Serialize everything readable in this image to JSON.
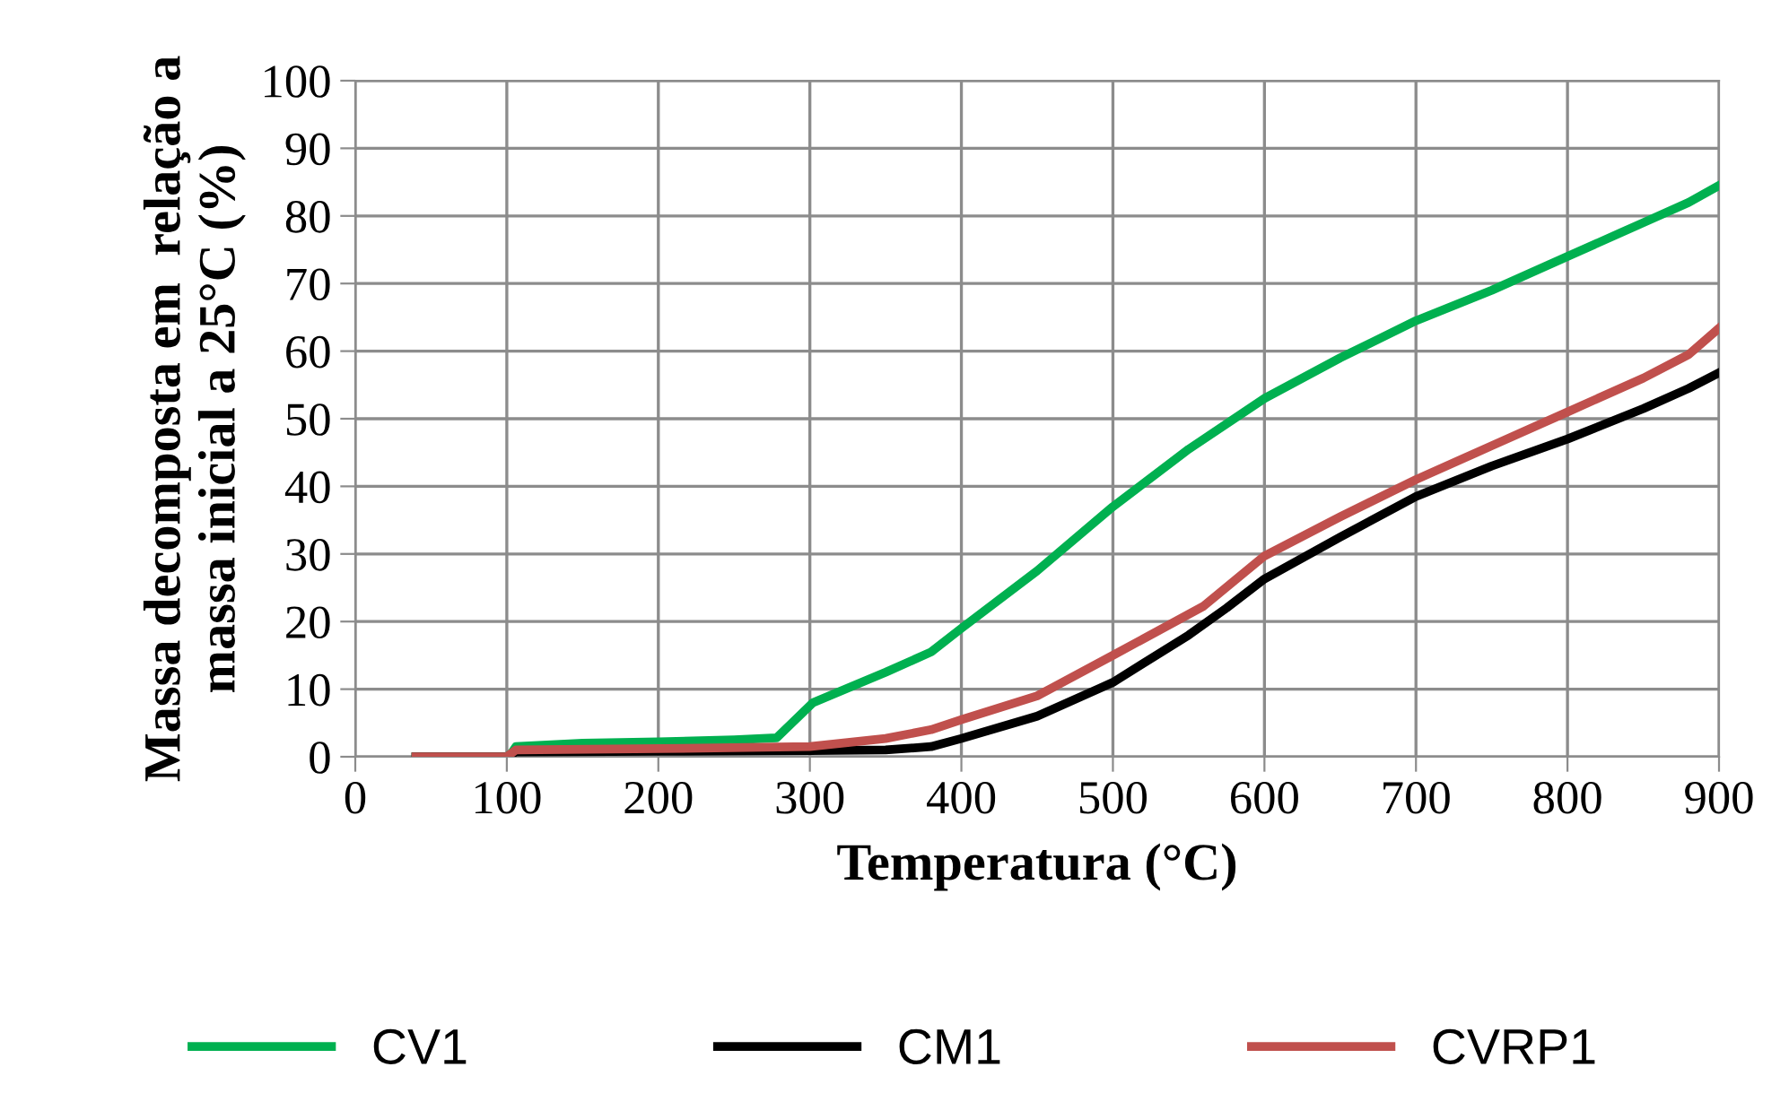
{
  "chart_data": {
    "type": "line",
    "xlabel": "Temperatura (°C)",
    "ylabel": "Massa decomposta em  relação a\nmassa inicial a 25°C (%)",
    "xlim": [
      0,
      900
    ],
    "xticks": [
      0,
      100,
      200,
      300,
      400,
      500,
      600,
      700,
      800,
      900
    ],
    "ylim": [
      0,
      100
    ],
    "yticks": [
      0,
      10,
      20,
      30,
      40,
      50,
      60,
      70,
      80,
      90,
      100
    ],
    "grid": true,
    "legend": "bottom",
    "marker": "none",
    "line_style": "solid",
    "series": [
      {
        "name": "CV1",
        "color": "#00b050",
        "x": [
          40,
          100,
          103,
          106,
          150,
          200,
          250,
          278,
          302,
          350,
          380,
          400,
          450,
          500,
          550,
          600,
          650,
          700,
          750,
          800,
          850,
          880,
          900
        ],
        "values": [
          0,
          0,
          0.5,
          1.5,
          2,
          2.2,
          2.5,
          2.8,
          8,
          12.5,
          15.5,
          19,
          27.5,
          37,
          45.5,
          53,
          59,
          64.5,
          69,
          74,
          79,
          82,
          84.5
        ]
      },
      {
        "name": "CM1",
        "color": "#000000",
        "x": [
          40,
          100,
          106,
          200,
          300,
          350,
          380,
          400,
          450,
          500,
          550,
          575,
          600,
          650,
          700,
          750,
          800,
          850,
          880,
          900
        ],
        "values": [
          0,
          0,
          0.7,
          0.8,
          0.9,
          1,
          1.5,
          2.7,
          6,
          11,
          18,
          22,
          26.3,
          32.5,
          38.5,
          43,
          47,
          51.5,
          54.5,
          56.8
        ]
      },
      {
        "name": "CVRP1",
        "color": "#c0504d",
        "x": [
          40,
          100,
          106,
          200,
          300,
          350,
          380,
          400,
          450,
          500,
          560,
          600,
          650,
          700,
          750,
          800,
          850,
          880,
          900
        ],
        "values": [
          0,
          0,
          1,
          1.2,
          1.5,
          2.7,
          4,
          5.5,
          9,
          15,
          22.3,
          29.7,
          35.5,
          41,
          46,
          51,
          56,
          59.5,
          63.4
        ]
      }
    ]
  }
}
